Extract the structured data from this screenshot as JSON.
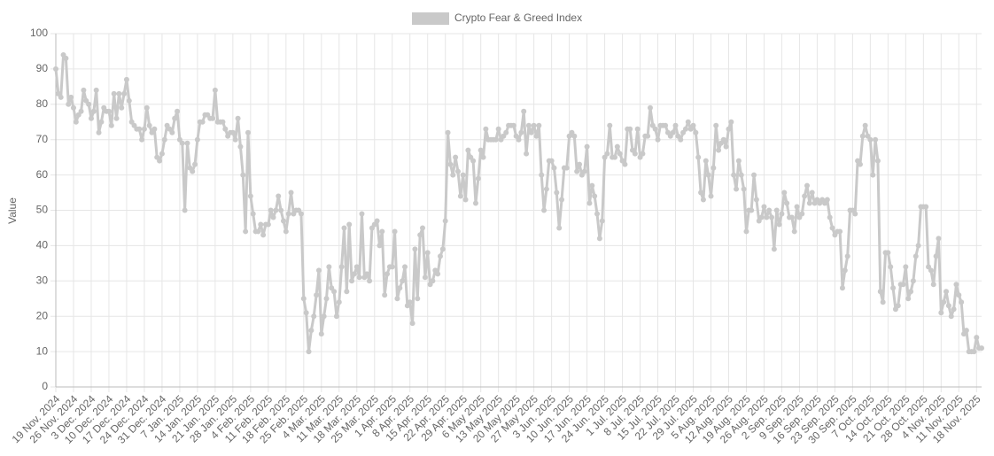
{
  "chart_data": {
    "type": "line",
    "legend": "top",
    "grid": true,
    "y_label": "Value",
    "categories": [
      "19 Nov. 2024",
      null,
      null,
      null,
      null,
      null,
      null,
      "26 Nov. 2024",
      null,
      null,
      null,
      null,
      null,
      null,
      "3 Dec. 2024",
      null,
      null,
      null,
      null,
      null,
      null,
      "10 Dec. 2024",
      null,
      null,
      null,
      null,
      null,
      null,
      "17 Dec. 2024",
      null,
      null,
      null,
      null,
      null,
      null,
      "24 Dec. 2024",
      null,
      null,
      null,
      null,
      null,
      null,
      "31 Dec. 2024",
      null,
      null,
      null,
      null,
      null,
      null,
      "7 Jan. 2025",
      null,
      null,
      null,
      null,
      null,
      null,
      "14 Jan. 2025",
      null,
      null,
      null,
      null,
      null,
      null,
      "21 Jan. 2025",
      null,
      null,
      null,
      null,
      null,
      null,
      "28 Jan. 2025",
      null,
      null,
      null,
      null,
      null,
      null,
      "4 Feb. 2025",
      null,
      null,
      null,
      null,
      null,
      null,
      "11 Feb. 2025",
      null,
      null,
      null,
      null,
      null,
      null,
      "18 Feb. 2025",
      null,
      null,
      null,
      null,
      null,
      null,
      "25 Feb. 2025",
      null,
      null,
      null,
      null,
      null,
      null,
      "4 Mar. 2025",
      null,
      null,
      null,
      null,
      null,
      null,
      "11 Mar. 2025",
      null,
      null,
      null,
      null,
      null,
      null,
      "18 Mar. 2025",
      null,
      null,
      null,
      null,
      null,
      null,
      "25 Mar. 2025",
      null,
      null,
      null,
      null,
      null,
      null,
      "1 Apr. 2025",
      null,
      null,
      null,
      null,
      null,
      null,
      "8 Apr. 2025",
      null,
      null,
      null,
      null,
      null,
      null,
      "15 Apr. 2025",
      null,
      null,
      null,
      null,
      null,
      null,
      "22 Apr. 2025",
      null,
      null,
      null,
      null,
      null,
      null,
      "29 Apr. 2025",
      null,
      null,
      null,
      null,
      null,
      null,
      "6 May 2025",
      null,
      null,
      null,
      null,
      null,
      null,
      "13 May 2025",
      null,
      null,
      null,
      null,
      null,
      null,
      "20 May 2025",
      null,
      null,
      null,
      null,
      null,
      null,
      "27 May 2025",
      null,
      null,
      null,
      null,
      null,
      null,
      "3 Jun. 2025",
      null,
      null,
      null,
      null,
      null,
      null,
      "10 Jun. 2025",
      null,
      null,
      null,
      null,
      null,
      null,
      "17 Jun. 2025",
      null,
      null,
      null,
      null,
      null,
      null,
      "24 Jun. 2025",
      null,
      null,
      null,
      null,
      null,
      null,
      "1 Jul. 2025",
      null,
      null,
      null,
      null,
      null,
      null,
      "8 Jul. 2025",
      null,
      null,
      null,
      null,
      null,
      null,
      "15 Jul. 2025",
      null,
      null,
      null,
      null,
      null,
      null,
      "22 Jul. 2025",
      null,
      null,
      null,
      null,
      null,
      null,
      "29 Jul. 2025",
      null,
      null,
      null,
      null,
      null,
      null,
      "5 Aug. 2025",
      null,
      null,
      null,
      null,
      null,
      null,
      "12 Aug. 2025",
      null,
      null,
      null,
      null,
      null,
      null,
      "19 Aug. 2025",
      null,
      null,
      null,
      null,
      null,
      null,
      "26 Aug. 2025",
      null,
      null,
      null,
      null,
      null,
      null,
      "2 Sep. 2025",
      null,
      null,
      null,
      null,
      null,
      null,
      "9 Sep. 2025",
      null,
      null,
      null,
      null,
      null,
      null,
      "16 Sep. 2025",
      null,
      null,
      null,
      null,
      null,
      null,
      "23 Sep. 2025",
      null,
      null,
      null,
      null,
      null,
      null,
      "30 Sep. 2025",
      null,
      null,
      null,
      null,
      null,
      null,
      "7 Oct. 2025",
      null,
      null,
      null,
      null,
      null,
      null,
      "14 Oct. 2025",
      null,
      null,
      null,
      null,
      null,
      null,
      "21 Oct. 2025",
      null,
      null,
      null,
      null,
      null,
      null,
      "28 Oct. 2025",
      null,
      null,
      null,
      null,
      null,
      null,
      "4 Nov. 2025",
      null,
      null,
      null,
      null,
      null,
      null,
      "11 Nov. 2025",
      null,
      null,
      null,
      null,
      null,
      null,
      "18 Nov. 2025",
      null,
      null
    ],
    "series": [
      {
        "name": "Crypto Fear & Greed Index",
        "color": "#c9c9c9",
        "values": [
          90,
          83,
          82,
          94,
          93,
          80,
          82,
          79,
          75,
          77,
          78,
          84,
          81,
          80,
          76,
          78,
          84,
          72,
          75,
          79,
          78,
          78,
          74,
          83,
          76,
          83,
          79,
          83,
          87,
          81,
          75,
          74,
          73,
          73,
          70,
          73,
          79,
          74,
          72,
          73,
          65,
          64,
          66,
          70,
          74,
          73,
          72,
          76,
          78,
          70,
          69,
          50,
          69,
          62,
          61,
          63,
          70,
          75,
          75,
          77,
          77,
          76,
          76,
          84,
          75,
          75,
          75,
          73,
          71,
          72,
          72,
          70,
          76,
          68,
          60,
          44,
          72,
          54,
          49,
          44,
          44,
          46,
          43,
          46,
          46,
          50,
          48,
          50,
          54,
          50,
          47,
          44,
          49,
          55,
          49,
          50,
          50,
          49,
          25,
          21,
          10,
          16,
          20,
          26,
          33,
          15,
          20,
          25,
          34,
          28,
          27,
          20,
          24,
          34,
          45,
          27,
          46,
          30,
          32,
          34,
          31,
          49,
          31,
          32,
          30,
          45,
          46,
          47,
          40,
          44,
          26,
          32,
          34,
          34,
          44,
          25,
          28,
          30,
          34,
          23,
          24,
          18,
          39,
          25,
          43,
          45,
          31,
          38,
          29,
          30,
          33,
          32,
          37,
          39,
          47,
          72,
          63,
          60,
          65,
          61,
          54,
          60,
          53,
          67,
          65,
          64,
          52,
          59,
          67,
          65,
          73,
          70,
          70,
          70,
          70,
          73,
          70,
          71,
          72,
          74,
          74,
          74,
          71,
          70,
          72,
          78,
          66,
          74,
          72,
          74,
          71,
          74,
          60,
          50,
          56,
          64,
          64,
          62,
          55,
          45,
          53,
          62,
          62,
          71,
          72,
          71,
          61,
          63,
          60,
          61,
          68,
          52,
          57,
          54,
          49,
          42,
          47,
          65,
          66,
          74,
          65,
          65,
          68,
          66,
          64,
          63,
          73,
          73,
          67,
          66,
          73,
          65,
          66,
          71,
          71,
          79,
          74,
          73,
          70,
          74,
          74,
          74,
          72,
          71,
          72,
          74,
          71,
          70,
          72,
          73,
          75,
          73,
          74,
          72,
          65,
          55,
          53,
          64,
          60,
          54,
          62,
          74,
          67,
          69,
          70,
          68,
          73,
          75,
          60,
          56,
          64,
          60,
          56,
          44,
          50,
          50,
          60,
          53,
          47,
          48,
          51,
          48,
          50,
          48,
          39,
          50,
          46,
          49,
          55,
          52,
          48,
          48,
          44,
          51,
          48,
          49,
          54,
          57,
          52,
          55,
          52,
          53,
          52,
          53,
          52,
          53,
          48,
          45,
          43,
          44,
          44,
          28,
          33,
          37,
          50,
          50,
          49,
          64,
          63,
          71,
          74,
          71,
          70,
          60,
          70,
          64,
          27,
          24,
          38,
          38,
          34,
          28,
          22,
          23,
          29,
          29,
          34,
          25,
          27,
          30,
          37,
          40,
          51,
          51,
          51,
          34,
          33,
          29,
          37,
          42,
          21,
          24,
          27,
          23,
          20,
          22,
          29,
          26,
          24,
          15,
          16,
          10,
          10,
          10,
          14,
          11,
          11
        ]
      }
    ],
    "ylim": [
      0,
      100
    ],
    "yticks": [
      0,
      10,
      20,
      30,
      40,
      50,
      60,
      70,
      80,
      90,
      100
    ]
  }
}
